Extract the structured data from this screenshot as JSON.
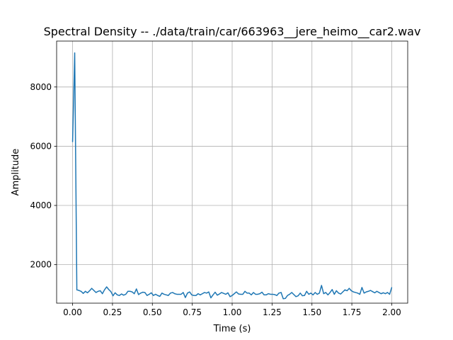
{
  "chart_data": {
    "type": "line",
    "title": "Spectral Density -- ./data/train/car/663963__jere_heimo__car2.wav",
    "xlabel": "Time (s)",
    "ylabel": "Amplitude",
    "xlim": [
      -0.1,
      2.1
    ],
    "ylim": [
      700,
      9550
    ],
    "grid": true,
    "x_ticks": [
      0.0,
      0.25,
      0.5,
      0.75,
      1.0,
      1.25,
      1.5,
      1.75,
      2.0
    ],
    "x_tick_labels": [
      "0.00",
      "0.25",
      "0.50",
      "0.75",
      "1.00",
      "1.25",
      "1.50",
      "1.75",
      "2.00"
    ],
    "y_ticks": [
      2000,
      4000,
      6000,
      8000
    ],
    "y_tick_labels": [
      "2000",
      "4000",
      "6000",
      "8000"
    ],
    "series": [
      {
        "color": "#1f77b4",
        "x": [
          0.0,
          0.0133,
          0.0267,
          0.04,
          0.0533,
          0.0667,
          0.08,
          0.0933,
          0.1067,
          0.12,
          0.1333,
          0.1467,
          0.16,
          0.1733,
          0.1867,
          0.2,
          0.2133,
          0.2267,
          0.24,
          0.2533,
          0.2667,
          0.28,
          0.2933,
          0.3067,
          0.32,
          0.3333,
          0.3467,
          0.36,
          0.3733,
          0.3867,
          0.4,
          0.4133,
          0.4267,
          0.44,
          0.4533,
          0.4667,
          0.48,
          0.4933,
          0.5067,
          0.52,
          0.5333,
          0.5467,
          0.56,
          0.5733,
          0.5867,
          0.6,
          0.6133,
          0.6267,
          0.64,
          0.6533,
          0.6667,
          0.68,
          0.6933,
          0.7067,
          0.72,
          0.7333,
          0.7467,
          0.76,
          0.7733,
          0.7867,
          0.8,
          0.8133,
          0.8267,
          0.84,
          0.8533,
          0.8667,
          0.88,
          0.8933,
          0.9067,
          0.92,
          0.9333,
          0.9467,
          0.96,
          0.9733,
          0.9867,
          1.0,
          1.0133,
          1.0267,
          1.04,
          1.0533,
          1.0667,
          1.08,
          1.0933,
          1.1067,
          1.12,
          1.1333,
          1.1467,
          1.16,
          1.1733,
          1.1867,
          1.2,
          1.2133,
          1.2267,
          1.24,
          1.2533,
          1.2667,
          1.28,
          1.2933,
          1.3067,
          1.32,
          1.3333,
          1.3467,
          1.36,
          1.3733,
          1.3867,
          1.4,
          1.4133,
          1.4267,
          1.44,
          1.4533,
          1.4667,
          1.48,
          1.4933,
          1.5067,
          1.52,
          1.5333,
          1.5467,
          1.56,
          1.5733,
          1.5867,
          1.6,
          1.6133,
          1.6267,
          1.64,
          1.6533,
          1.6667,
          1.68,
          1.6933,
          1.7067,
          1.72,
          1.7333,
          1.7467,
          1.76,
          1.7733,
          1.7867,
          1.8,
          1.8133,
          1.8267,
          1.84,
          1.8533,
          1.8667,
          1.88,
          1.8933,
          1.9067,
          1.92,
          1.9333,
          1.9467,
          1.96,
          1.9733,
          1.9867,
          2.0
        ],
        "values": [
          6150,
          9150,
          1150,
          1130,
          1100,
          1030,
          1100,
          1050,
          1120,
          1200,
          1130,
          1060,
          1100,
          1120,
          1020,
          1150,
          1250,
          1160,
          1090,
          950,
          1050,
          980,
          960,
          1010,
          970,
          1000,
          1100,
          1100,
          1080,
          1020,
          1180,
          990,
          1040,
          1070,
          1060,
          960,
          1000,
          1050,
          960,
          1000,
          960,
          930,
          1040,
          1000,
          980,
          960,
          1040,
          1060,
          1020,
          1000,
          1000,
          1000,
          1060,
          890,
          1040,
          1080,
          980,
          960,
          960,
          1020,
          980,
          1020,
          1060,
          1040,
          1080,
          880,
          980,
          1070,
          970,
          1010,
          1060,
          1030,
          1000,
          1050,
          920,
          960,
          1020,
          1080,
          1010,
          1000,
          1000,
          1100,
          1040,
          1040,
          980,
          1060,
          1000,
          1000,
          1020,
          1070,
          980,
          980,
          1020,
          1000,
          1000,
          990,
          960,
          1040,
          1060,
          850,
          860,
          960,
          1000,
          1060,
          990,
          920,
          950,
          1040,
          950,
          960,
          1100,
          1000,
          1040,
          980,
          1060,
          1000,
          1040,
          1300,
          1020,
          1060,
          980,
          1060,
          1160,
          1000,
          1120,
          1040,
          1010,
          1080,
          1150,
          1120,
          1200,
          1120,
          1080,
          1060,
          1040,
          1000,
          1230,
          1040,
          1080,
          1100,
          1130,
          1090,
          1050,
          1100,
          1060,
          1020,
          1050,
          1020,
          1060,
          1000,
          1230
        ]
      }
    ]
  }
}
